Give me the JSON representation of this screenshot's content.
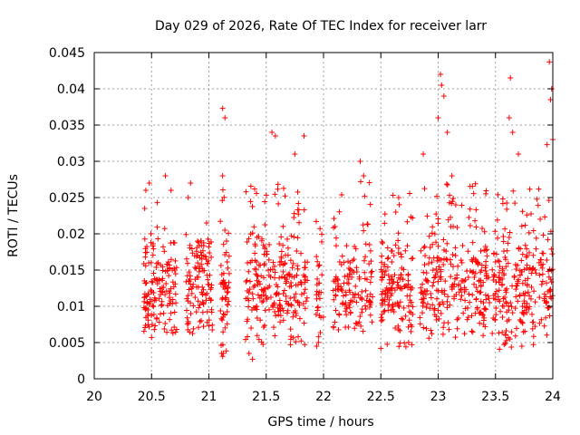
{
  "chart_data": {
    "type": "scatter",
    "title": "Day 029 of 2026, Rate Of TEC Index for receiver larr",
    "xlabel": "GPS time / hours",
    "ylabel": "ROTI / TECUs",
    "xlim": [
      20,
      24
    ],
    "ylim": [
      0,
      0.045
    ],
    "x_ticks": [
      20,
      20.5,
      21,
      21.5,
      22,
      22.5,
      23,
      23.5,
      24
    ],
    "x_tick_labels": [
      "20",
      "20.5",
      "21",
      "21.5",
      "22",
      "22.5",
      "23",
      "23.5",
      "24"
    ],
    "y_ticks": [
      0,
      0.005,
      0.01,
      0.015,
      0.02,
      0.025,
      0.03,
      0.035,
      0.04,
      0.045
    ],
    "y_tick_labels": [
      "0",
      "0.005",
      "0.01",
      "0.015",
      "0.02",
      "0.025",
      "0.03",
      "0.035",
      "0.04",
      "0.045"
    ],
    "grid": true,
    "marker": "+",
    "marker_color": "#ff0000",
    "series": [
      {
        "name": "ROTI",
        "clusters": [
          {
            "x_range": [
              20.43,
              20.72
            ],
            "y_range": [
              0.006,
              0.021
            ],
            "count": 150,
            "outliers": [
              [
                20.45,
                0.026
              ],
              [
                20.48,
                0.027
              ],
              [
                20.62,
                0.028
              ],
              [
                20.67,
                0.026
              ],
              [
                20.5,
                0.0057
              ],
              [
                20.44,
                0.0235
              ],
              [
                20.55,
                0.0243
              ]
            ]
          },
          {
            "x_range": [
              20.8,
              21.03
            ],
            "y_range": [
              0.0055,
              0.02
            ],
            "count": 120,
            "outliers": [
              [
                20.84,
                0.027
              ],
              [
                20.82,
                0.025
              ],
              [
                20.93,
                0.019
              ],
              [
                20.98,
                0.0215
              ],
              [
                21.0,
                0.0073
              ]
            ]
          },
          {
            "x_range": [
              21.1,
              21.18
            ],
            "y_range": [
              0.0035,
              0.037
            ],
            "count": 55,
            "outliers": [
              [
                21.12,
                0.0373
              ],
              [
                21.14,
                0.036
              ],
              [
                21.12,
                0.028
              ],
              [
                21.11,
                0.0035
              ],
              [
                21.12,
                0.0031
              ]
            ]
          },
          {
            "x_range": [
              21.32,
              21.86
            ],
            "y_range": [
              0.0045,
              0.027
            ],
            "count": 260,
            "outliers": [
              [
                21.35,
                0.0035
              ],
              [
                21.38,
                0.0027
              ],
              [
                21.55,
                0.034
              ],
              [
                21.58,
                0.0335
              ],
              [
                21.83,
                0.0335
              ],
              [
                21.75,
                0.031
              ]
            ]
          },
          {
            "x_range": [
              21.93,
              22.0
            ],
            "y_range": [
              0.0045,
              0.025
            ],
            "count": 30,
            "outliers": [
              [
                21.94,
                0.0045
              ]
            ]
          },
          {
            "x_range": [
              22.08,
              22.43
            ],
            "y_range": [
              0.0055,
              0.029
            ],
            "count": 140,
            "outliers": [
              [
                22.32,
                0.03
              ],
              [
                22.35,
                0.028
              ],
              [
                22.1,
                0.021
              ]
            ]
          },
          {
            "x_range": [
              22.5,
              22.78
            ],
            "y_range": [
              0.004,
              0.026
            ],
            "count": 150,
            "outliers": [
              [
                22.5,
                0.0042
              ],
              [
                22.63,
                0.023
              ]
            ]
          },
          {
            "x_range": [
              22.84,
              23.45
            ],
            "y_range": [
              0.005,
              0.027
            ],
            "count": 270,
            "outliers": [
              [
                23.02,
                0.042
              ],
              [
                23.03,
                0.0405
              ],
              [
                23.05,
                0.039
              ],
              [
                23.0,
                0.036
              ],
              [
                23.08,
                0.034
              ],
              [
                22.87,
                0.031
              ],
              [
                23.12,
                0.028
              ]
            ]
          },
          {
            "x_range": [
              23.47,
              24.0
            ],
            "y_range": [
              0.004,
              0.027
            ],
            "count": 250,
            "outliers": [
              [
                23.63,
                0.0415
              ],
              [
                23.97,
                0.0437
              ],
              [
                23.99,
                0.04
              ],
              [
                23.98,
                0.0385
              ],
              [
                23.62,
                0.036
              ],
              [
                23.65,
                0.034
              ],
              [
                23.7,
                0.031
              ],
              [
                23.95,
                0.0323
              ],
              [
                24.0,
                0.033
              ],
              [
                23.73,
                0.0045
              ]
            ]
          }
        ]
      }
    ]
  }
}
